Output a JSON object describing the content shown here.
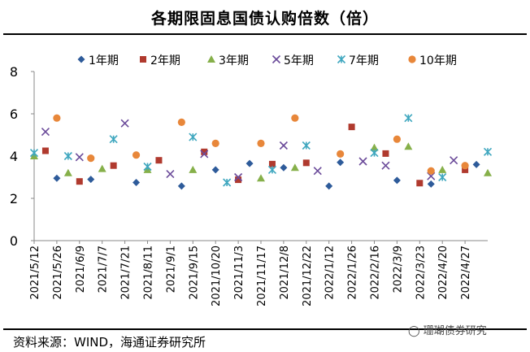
{
  "page": {
    "title": "各期限固息国债认购倍数（倍）",
    "source": "资料来源：WIND，海通证券研究所",
    "watermark": "珊瑚债券研究"
  },
  "chart_data": {
    "type": "scatter",
    "title": "各期限固息国债认购倍数（倍）",
    "xlabel": "",
    "ylabel": "",
    "ylim": [
      0,
      8
    ],
    "yticks": [
      0,
      2,
      4,
      6,
      8
    ],
    "x_tick_labels": [
      "2021/5/12",
      "2021/5/26",
      "2021/6/9",
      "2021/7/7",
      "2021/7/21",
      "2021/8/11",
      "2021/9/1",
      "2021/9/15",
      "2021/10/20",
      "2021/11/3",
      "2021/11/17",
      "2021/12/8",
      "2021/12/22",
      "2022/1/12",
      "2022/1/26",
      "2022/2/16",
      "2022/3/9",
      "2022/3/23",
      "2022/4/20",
      "2022/4/27"
    ],
    "x_slots": 41,
    "legend_position": "top",
    "series": [
      {
        "name": "1年期",
        "marker": "diamond",
        "color": "#2E5B9A",
        "points": [
          [
            2,
            2.95
          ],
          [
            5,
            2.9
          ],
          [
            9,
            2.75
          ],
          [
            13,
            2.58
          ],
          [
            16,
            3.35
          ],
          [
            19,
            3.65
          ],
          [
            22,
            3.45
          ],
          [
            26,
            2.58
          ],
          [
            27,
            3.7
          ],
          [
            32,
            2.85
          ],
          [
            35,
            2.68
          ],
          [
            39,
            3.6
          ]
        ]
      },
      {
        "name": "2年期",
        "marker": "square",
        "color": "#B03A2E",
        "points": [
          [
            1,
            4.25
          ],
          [
            4,
            2.8
          ],
          [
            7,
            3.55
          ],
          [
            11,
            3.8
          ],
          [
            15,
            4.2
          ],
          [
            18,
            2.88
          ],
          [
            21,
            3.62
          ],
          [
            24,
            3.68
          ],
          [
            28,
            5.38
          ],
          [
            31,
            4.12
          ],
          [
            34,
            2.72
          ],
          [
            38,
            3.35
          ]
        ]
      },
      {
        "name": "3年期",
        "marker": "triangle",
        "color": "#86B04A",
        "points": [
          [
            0,
            4.0
          ],
          [
            3,
            3.2
          ],
          [
            6,
            3.4
          ],
          [
            10,
            3.35
          ],
          [
            14,
            3.35
          ],
          [
            20,
            2.95
          ],
          [
            23,
            3.45
          ],
          [
            30,
            4.4
          ],
          [
            33,
            4.45
          ],
          [
            36,
            3.35
          ],
          [
            40,
            3.2
          ]
        ]
      },
      {
        "name": "5年期",
        "marker": "x",
        "color": "#6B4B9A",
        "points": [
          [
            1,
            5.15
          ],
          [
            4,
            3.95
          ],
          [
            8,
            5.55
          ],
          [
            12,
            3.15
          ],
          [
            15,
            4.1
          ],
          [
            18,
            3.0
          ],
          [
            22,
            4.5
          ],
          [
            25,
            3.3
          ],
          [
            29,
            3.75
          ],
          [
            31,
            3.55
          ],
          [
            35,
            3.05
          ],
          [
            37,
            3.8
          ]
        ]
      },
      {
        "name": "7年期",
        "marker": "asterisk",
        "color": "#3FA7BF",
        "points": [
          [
            0,
            4.15
          ],
          [
            3,
            4.0
          ],
          [
            7,
            4.8
          ],
          [
            10,
            3.5
          ],
          [
            14,
            4.9
          ],
          [
            17,
            2.75
          ],
          [
            21,
            3.35
          ],
          [
            24,
            4.5
          ],
          [
            30,
            4.15
          ],
          [
            33,
            5.8
          ],
          [
            36,
            3.0
          ],
          [
            40,
            4.2
          ]
        ]
      },
      {
        "name": "10年期",
        "marker": "circle",
        "color": "#E8873A",
        "points": [
          [
            2,
            5.8
          ],
          [
            5,
            3.9
          ],
          [
            9,
            4.05
          ],
          [
            13,
            5.6
          ],
          [
            16,
            4.6
          ],
          [
            20,
            4.6
          ],
          [
            23,
            5.8
          ],
          [
            27,
            4.1
          ],
          [
            32,
            4.8
          ],
          [
            35,
            3.3
          ],
          [
            38,
            3.55
          ]
        ]
      }
    ]
  }
}
